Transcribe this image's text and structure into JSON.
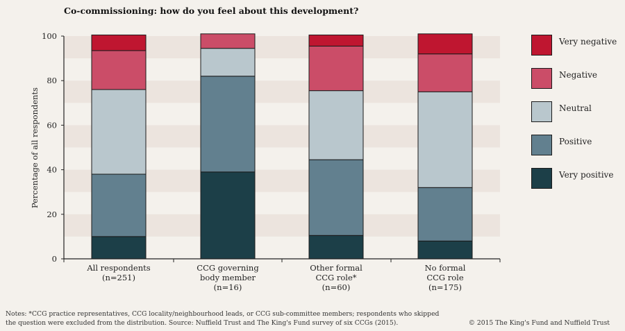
{
  "chart_data": {
    "type": "bar",
    "stacked": true,
    "title": "Co-commissioning: how do you feel about this development?",
    "ylabel": "Percentage of all respondents",
    "xlabel": "",
    "ylim": [
      0,
      100
    ],
    "yticks": [
      0,
      20,
      40,
      60,
      80,
      100
    ],
    "categories": [
      [
        "All respondents",
        "(n=251)"
      ],
      [
        "CCG governing",
        "body member",
        "(n=16)"
      ],
      [
        "Other formal",
        "CCG role*",
        "(n=60)"
      ],
      [
        "No formal",
        "CCG role",
        "(n=175)"
      ]
    ],
    "series": [
      {
        "name": "Very positive",
        "color": "#1c3f48",
        "values": [
          10,
          39,
          10.5,
          8
        ]
      },
      {
        "name": "Positive",
        "color": "#62808f",
        "values": [
          28,
          43,
          34,
          24
        ]
      },
      {
        "name": "Neutral",
        "color": "#b9c7cd",
        "values": [
          38,
          12.5,
          31,
          43
        ]
      },
      {
        "name": "Negative",
        "color": "#cb4d68",
        "values": [
          17.5,
          6.5,
          20,
          17
        ]
      },
      {
        "name": "Very negative",
        "color": "#bf1630",
        "values": [
          7,
          0,
          5,
          9
        ]
      }
    ],
    "legend_order": [
      "Very negative",
      "Negative",
      "Neutral",
      "Positive",
      "Very positive"
    ],
    "band_color": "#ece4de"
  },
  "notes": {
    "line1": "Notes: *CCG practice representatives, CCG locality/neighbourhood leads, or CCG sub-committee members; respondents who skipped",
    "line2": "the question were excluded from the distribution. Source: Nuffield Trust and The King's Fund survey of six CCGs (2015)."
  },
  "copyright": "© 2015 The King's Fund and Nuffield Trust"
}
